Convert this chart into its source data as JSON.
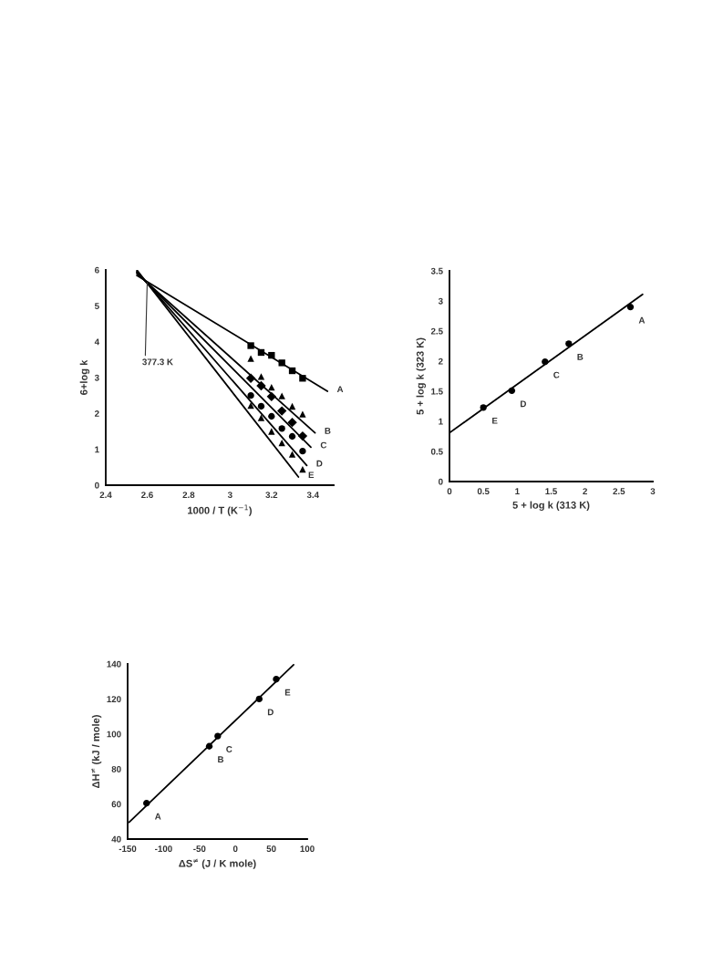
{
  "chart_data": [
    {
      "type": "scatter",
      "xlabel": "1000 / T (K$^{−1}$)",
      "ylabel": "6+log k",
      "xlim": [
        2.4,
        3.5
      ],
      "ylim": [
        0,
        6
      ],
      "xticks": [
        2.4,
        2.6,
        2.8,
        3,
        3.2,
        3.4
      ],
      "yticks": [
        0,
        1,
        2,
        3,
        4,
        5,
        6
      ],
      "grid": false,
      "legend": false,
      "series": [
        {
          "marker": "square",
          "color": "#000000",
          "x": [
            3.1,
            3.15,
            3.2,
            3.25,
            3.3,
            3.35
          ],
          "values": [
            3.89,
            3.7,
            3.62,
            3.41,
            3.19,
            2.98
          ]
        },
        {
          "marker": "triangle",
          "color": "#000000",
          "x": [
            3.1,
            3.15,
            3.2,
            3.25,
            3.3,
            3.35
          ],
          "values": [
            3.53,
            3.03,
            2.73,
            2.49,
            2.2,
            1.98
          ]
        },
        {
          "marker": "diamond",
          "color": "#000000",
          "x": [
            3.1,
            3.15,
            3.2,
            3.25,
            3.3,
            3.35
          ],
          "values": [
            2.98,
            2.77,
            2.47,
            2.07,
            1.75,
            1.37
          ]
        },
        {
          "marker": "circle",
          "color": "#000000",
          "x": [
            3.1,
            3.15,
            3.2,
            3.25,
            3.3,
            3.35
          ],
          "values": [
            2.5,
            2.2,
            1.92,
            1.58,
            1.36,
            0.95
          ]
        },
        {
          "marker": "triangle",
          "color": "#000000",
          "x": [
            3.1,
            3.15,
            3.2,
            3.25,
            3.3,
            3.35
          ],
          "values": [
            2.22,
            1.88,
            1.5,
            1.18,
            0.86,
            0.44
          ]
        },
        {
          "type": "line",
          "name": "A",
          "marker": "none",
          "color": "#000000",
          "x": [
            2.55,
            3.47
          ],
          "values": [
            5.85,
            2.62
          ]
        },
        {
          "type": "line",
          "name": "B",
          "marker": "none",
          "color": "#000000",
          "x": [
            2.55,
            3.41
          ],
          "values": [
            5.9,
            1.46
          ]
        },
        {
          "type": "line",
          "name": "C",
          "marker": "none",
          "color": "#000000",
          "x": [
            2.55,
            3.39
          ],
          "values": [
            5.93,
            1.06
          ]
        },
        {
          "type": "line",
          "name": "D",
          "marker": "none",
          "color": "#000000",
          "x": [
            2.55,
            3.37
          ],
          "values": [
            5.96,
            0.55
          ]
        },
        {
          "type": "line",
          "name": "E",
          "marker": "none",
          "color": "#000000",
          "x": [
            2.55,
            3.33
          ],
          "values": [
            6.0,
            0.23
          ]
        }
      ],
      "annotations": [
        {
          "text": "377.3 K",
          "x": 2.6,
          "y": 5.65
        }
      ]
    },
    {
      "type": "scatter",
      "xlabel": "5 + log k (313 K)",
      "ylabel": "5 + log k (323 K)",
      "xlim": [
        0,
        3
      ],
      "ylim": [
        0,
        3.5
      ],
      "xticks": [
        0,
        0.5,
        1,
        1.5,
        2,
        2.5,
        3
      ],
      "yticks": [
        0,
        0.5,
        1,
        1.5,
        2,
        2.5,
        3,
        3.5
      ],
      "grid": false,
      "legend": false,
      "series": [
        {
          "name": "E",
          "marker": "circle",
          "color": "#000000",
          "x": [
            0.5
          ],
          "values": [
            1.23
          ]
        },
        {
          "name": "D",
          "marker": "circle",
          "color": "#000000",
          "x": [
            0.92
          ],
          "values": [
            1.51
          ]
        },
        {
          "name": "C",
          "marker": "circle",
          "color": "#000000",
          "x": [
            1.41
          ],
          "values": [
            1.99
          ]
        },
        {
          "name": "B",
          "marker": "circle",
          "color": "#000000",
          "x": [
            1.76
          ],
          "values": [
            2.29
          ]
        },
        {
          "name": "A",
          "marker": "circle",
          "color": "#000000",
          "x": [
            2.67
          ],
          "values": [
            2.9
          ]
        },
        {
          "type": "line",
          "marker": "none",
          "color": "#000000",
          "x": [
            0,
            2.85
          ],
          "values": [
            0.81,
            3.11
          ]
        }
      ]
    },
    {
      "type": "scatter",
      "xlabel": "ΔS$^{≠}$ (J / K mole)",
      "ylabel": "ΔH$^{≠}$ (kJ / mole)",
      "xlim": [
        -150,
        100
      ],
      "ylim": [
        40,
        140
      ],
      "xticks": [
        -150,
        -100,
        -50,
        0,
        50,
        100
      ],
      "yticks": [
        40,
        60,
        80,
        100,
        120,
        140
      ],
      "grid": false,
      "legend": false,
      "series": [
        {
          "name": "A",
          "marker": "circle",
          "color": "#000000",
          "x": [
            -123.7
          ],
          "values": [
            60.5
          ]
        },
        {
          "name": "B",
          "marker": "circle",
          "color": "#000000",
          "x": [
            -36.4
          ],
          "values": [
            93.0
          ]
        },
        {
          "name": "C",
          "marker": "circle",
          "color": "#000000",
          "x": [
            -24.6
          ],
          "values": [
            98.8
          ]
        },
        {
          "name": "D",
          "marker": "circle",
          "color": "#000000",
          "x": [
            33.1
          ],
          "values": [
            120.0
          ]
        },
        {
          "name": "E",
          "marker": "circle",
          "color": "#000000",
          "x": [
            56.8
          ],
          "values": [
            131.3
          ]
        },
        {
          "type": "line",
          "marker": "none",
          "color": "#000000",
          "x": [
            -148,
            81
          ],
          "values": [
            49.6,
            139.5
          ]
        }
      ]
    }
  ]
}
